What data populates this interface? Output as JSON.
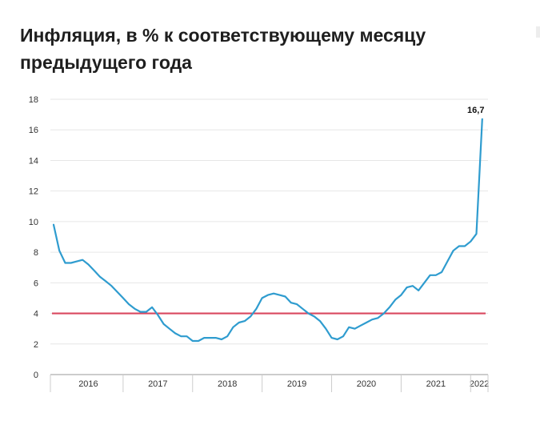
{
  "title": "Инфляция, в % к соответствующему месяцу предыдущего года",
  "colors": {
    "line": "#2f9ccf",
    "target_line": "#d9485f",
    "grid": "#e6e6e6",
    "axis": "#999999"
  },
  "chart_data": {
    "type": "line",
    "title": "Инфляция, в % к соответствующему месяцу предыдущего года",
    "xlabel": "",
    "ylabel": "",
    "ylim": [
      0,
      18
    ],
    "yticks": [
      0,
      2,
      4,
      6,
      8,
      10,
      12,
      14,
      16,
      18
    ],
    "xlim": [
      "2016-01",
      "2022-04"
    ],
    "year_labels": [
      "2016",
      "2017",
      "2018",
      "2019",
      "2020",
      "2021",
      "2022"
    ],
    "grid": true,
    "legend": "none",
    "series": [
      {
        "x": [
          "2016-01",
          "2016-02",
          "2016-03",
          "2016-04",
          "2016-05",
          "2016-06",
          "2016-07",
          "2016-08",
          "2016-09",
          "2016-10",
          "2016-11",
          "2016-12",
          "2017-01",
          "2017-02",
          "2017-03",
          "2017-04",
          "2017-05",
          "2017-06",
          "2017-07",
          "2017-08",
          "2017-09",
          "2017-10",
          "2017-11",
          "2017-12",
          "2018-01",
          "2018-02",
          "2018-03",
          "2018-04",
          "2018-05",
          "2018-06",
          "2018-07",
          "2018-08",
          "2018-09",
          "2018-10",
          "2018-11",
          "2018-12",
          "2019-01",
          "2019-02",
          "2019-03",
          "2019-04",
          "2019-05",
          "2019-06",
          "2019-07",
          "2019-08",
          "2019-09",
          "2019-10",
          "2019-11",
          "2019-12",
          "2020-01",
          "2020-02",
          "2020-03",
          "2020-04",
          "2020-05",
          "2020-06",
          "2020-07",
          "2020-08",
          "2020-09",
          "2020-10",
          "2020-11",
          "2020-12",
          "2021-01",
          "2021-02",
          "2021-03",
          "2021-04",
          "2021-05",
          "2021-06",
          "2021-07",
          "2021-08",
          "2021-09",
          "2021-10",
          "2021-11",
          "2021-12",
          "2022-01",
          "2022-02",
          "2022-03"
        ],
        "values": [
          9.8,
          8.1,
          7.3,
          7.3,
          7.4,
          7.5,
          7.2,
          6.8,
          6.4,
          6.1,
          5.8,
          5.4,
          5.0,
          4.6,
          4.3,
          4.1,
          4.1,
          4.4,
          3.9,
          3.3,
          3.0,
          2.7,
          2.5,
          2.5,
          2.2,
          2.2,
          2.4,
          2.4,
          2.4,
          2.3,
          2.5,
          3.1,
          3.4,
          3.5,
          3.8,
          4.3,
          5.0,
          5.2,
          5.3,
          5.2,
          5.1,
          4.7,
          4.6,
          4.3,
          4.0,
          3.8,
          3.5,
          3.0,
          2.4,
          2.3,
          2.5,
          3.1,
          3.0,
          3.2,
          3.4,
          3.6,
          3.7,
          4.0,
          4.4,
          4.9,
          5.2,
          5.7,
          5.8,
          5.5,
          6.0,
          6.5,
          6.5,
          6.7,
          7.4,
          8.1,
          8.4,
          8.4,
          8.7,
          9.2,
          16.7
        ]
      }
    ],
    "target_value": 4,
    "annotations": [
      {
        "x": "2022-03",
        "y": 16.7,
        "text": "16,7"
      }
    ]
  }
}
